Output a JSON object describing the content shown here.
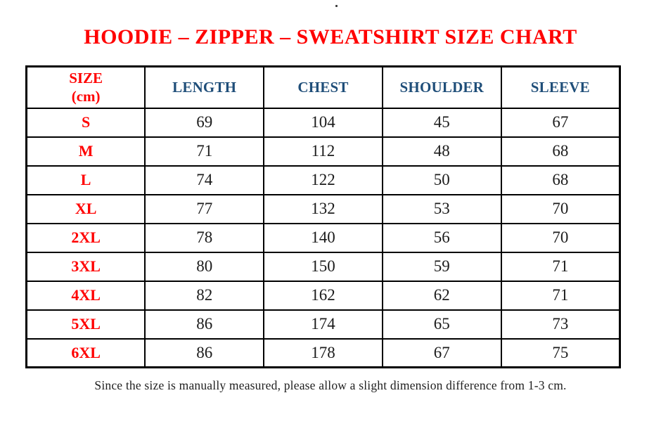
{
  "title": "HOODIE – ZIPPER – SWEATSHIRT SIZE CHART",
  "stray_dot": ".",
  "footnote": "Since the size is manually measured, please allow a slight dimension difference from 1-3 cm.",
  "colors": {
    "title_red": "#FF0000",
    "header_blue": "#1F4E79",
    "size_label_red": "#FF0000",
    "value_text": "#1B1B1B",
    "border": "#000000",
    "background": "#FFFFFF"
  },
  "table": {
    "header": {
      "size_line1": "SIZE",
      "size_line2": "(cm)",
      "length": "LENGTH",
      "chest": "CHEST",
      "shoulder": "SHOULDER",
      "sleeve": "SLEEVE"
    },
    "rows": [
      {
        "size": "S",
        "length": "69",
        "chest": "104",
        "shoulder": "45",
        "sleeve": "67"
      },
      {
        "size": "M",
        "length": "71",
        "chest": "112",
        "shoulder": "48",
        "sleeve": "68"
      },
      {
        "size": "L",
        "length": "74",
        "chest": "122",
        "shoulder": "50",
        "sleeve": "68"
      },
      {
        "size": "XL",
        "length": "77",
        "chest": "132",
        "shoulder": "53",
        "sleeve": "70"
      },
      {
        "size": "2XL",
        "length": "78",
        "chest": "140",
        "shoulder": "56",
        "sleeve": "70"
      },
      {
        "size": "3XL",
        "length": "80",
        "chest": "150",
        "shoulder": "59",
        "sleeve": "71"
      },
      {
        "size": "4XL",
        "length": "82",
        "chest": "162",
        "shoulder": "62",
        "sleeve": "71"
      },
      {
        "size": "5XL",
        "length": "86",
        "chest": "174",
        "shoulder": "65",
        "sleeve": "73"
      },
      {
        "size": "6XL",
        "length": "86",
        "chest": "178",
        "shoulder": "67",
        "sleeve": "75"
      }
    ]
  },
  "chart_data": {
    "type": "table",
    "title": "HOODIE – ZIPPER – SWEATSHIRT SIZE CHART",
    "unit": "cm",
    "columns": [
      "SIZE (cm)",
      "LENGTH",
      "CHEST",
      "SHOULDER",
      "SLEEVE"
    ],
    "rows": [
      [
        "S",
        69,
        104,
        45,
        67
      ],
      [
        "M",
        71,
        112,
        48,
        68
      ],
      [
        "L",
        74,
        122,
        50,
        68
      ],
      [
        "XL",
        77,
        132,
        53,
        70
      ],
      [
        "2XL",
        78,
        140,
        56,
        70
      ],
      [
        "3XL",
        80,
        150,
        59,
        71
      ],
      [
        "4XL",
        82,
        162,
        62,
        71
      ],
      [
        "5XL",
        86,
        174,
        65,
        73
      ],
      [
        "6XL",
        86,
        178,
        67,
        75
      ]
    ],
    "footnote": "Since the size is manually measured, please allow a slight dimension difference from 1-3 cm."
  }
}
